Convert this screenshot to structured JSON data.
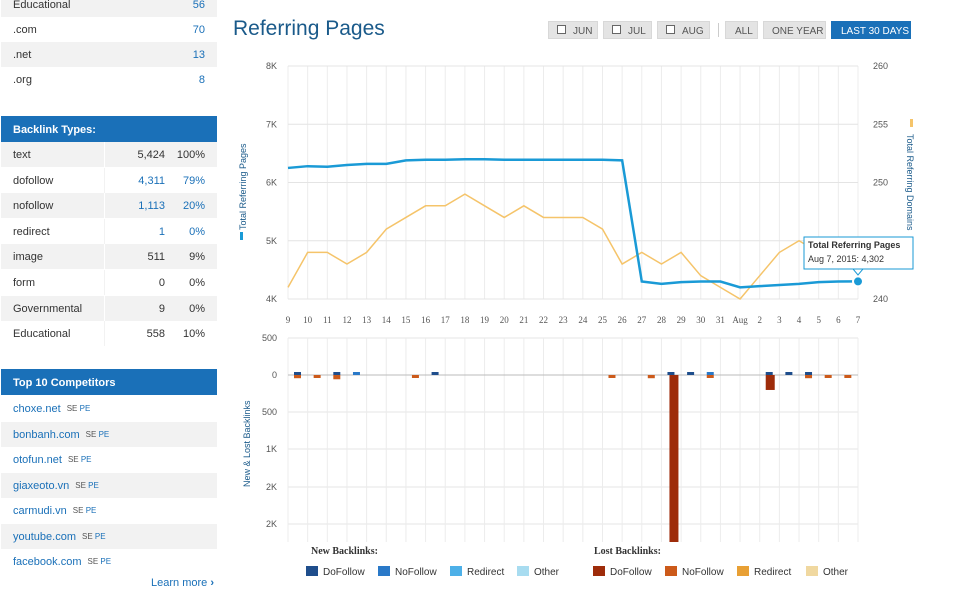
{
  "top_rows": [
    {
      "label": "Educational",
      "value": "56"
    },
    {
      "label": ".com",
      "value": "70"
    },
    {
      "label": ".net",
      "value": "13"
    },
    {
      "label": ".org",
      "value": "8"
    }
  ],
  "backlink_types": {
    "title": "Backlink Types:",
    "rows": [
      {
        "label": "text",
        "count": "5,424",
        "pct": "100%",
        "link": false
      },
      {
        "label": "dofollow",
        "count": "4,311",
        "pct": "79%",
        "link": true
      },
      {
        "label": "nofollow",
        "count": "1,113",
        "pct": "20%",
        "link": true
      },
      {
        "label": "redirect",
        "count": "1",
        "pct": "0%",
        "link": true
      },
      {
        "label": "image",
        "count": "511",
        "pct": "9%",
        "link": false
      },
      {
        "label": "form",
        "count": "0",
        "pct": "0%",
        "link": false
      },
      {
        "label": "Governmental",
        "count": "9",
        "pct": "0%",
        "link": false
      },
      {
        "label": "Educational",
        "count": "558",
        "pct": "10%",
        "link": false
      }
    ]
  },
  "competitors": {
    "title": "Top 10 Competitors",
    "items": [
      {
        "name": "choxe.net"
      },
      {
        "name": "bonbanh.com"
      },
      {
        "name": "otofun.net"
      },
      {
        "name": "giaxeoto.vn"
      },
      {
        "name": "carmudi.vn"
      },
      {
        "name": "youtube.com"
      },
      {
        "name": "facebook.com"
      }
    ],
    "se_label": "SE",
    "pe_label": "PE",
    "learn_more": "Learn more"
  },
  "header": {
    "title": "Referring Pages",
    "buttons": {
      "jun": "JUN",
      "jul": "JUL",
      "aug": "AUG",
      "all": "ALL",
      "one_year": "ONE YEAR",
      "last_30": "LAST 30 DAYS"
    }
  },
  "colors": {
    "accent": "#1a70b8",
    "line_pages": "#1a9ad6",
    "line_domains": "#f5c46a"
  },
  "chart_data": [
    {
      "type": "line",
      "x": [
        "9",
        "10",
        "11",
        "12",
        "13",
        "14",
        "15",
        "16",
        "17",
        "18",
        "19",
        "20",
        "21",
        "22",
        "23",
        "24",
        "25",
        "26",
        "27",
        "28",
        "29",
        "30",
        "31",
        "Aug",
        "2",
        "3",
        "4",
        "5",
        "6",
        "7"
      ],
      "ylabel": "Total Referring Pages",
      "y2label": "Total Referring Domains",
      "ylim": [
        4000,
        8000
      ],
      "y_ticks": [
        "4K",
        "5K",
        "6K",
        "7K",
        "8K"
      ],
      "y2lim": [
        240,
        260
      ],
      "y2_ticks": [
        "240",
        "245",
        "250",
        "255",
        "260"
      ],
      "series": [
        {
          "name": "Total Referring Pages",
          "axis": "left",
          "values": [
            6250,
            6280,
            6270,
            6300,
            6320,
            6320,
            6380,
            6390,
            6390,
            6400,
            6400,
            6390,
            6390,
            6390,
            6390,
            6390,
            6390,
            6380,
            4300,
            4260,
            4290,
            4300,
            4300,
            4200,
            4220,
            4240,
            4260,
            4290,
            4300,
            4302
          ]
        },
        {
          "axis": "right",
          "values": [
            241,
            244,
            244,
            243,
            244,
            246,
            247,
            248,
            248,
            249,
            248,
            247,
            248,
            247,
            247,
            247,
            246,
            243,
            244,
            243,
            244,
            242,
            241,
            240,
            242,
            244,
            245,
            244,
            244,
            244
          ]
        }
      ],
      "tooltip": {
        "title": "Total Referring Pages",
        "text": "Aug 7, 2015: 4,302"
      }
    },
    {
      "type": "bar",
      "ylabel": "New & Lost Backlinks",
      "y_ticks": [
        "500",
        "0",
        "500",
        "1K",
        "2K",
        "2K"
      ],
      "ylim": [
        -2500,
        500
      ],
      "legend_new_title": "New Backlinks:",
      "legend_lost_title": "Lost Backlinks:",
      "new_series": [
        {
          "name": "DoFollow",
          "color": "#1f4e8c",
          "values": [
            40,
            0,
            30,
            0,
            0,
            0,
            0,
            50,
            0,
            0,
            0,
            0,
            0,
            0,
            0,
            0,
            0,
            0,
            0,
            40,
            40,
            0,
            0,
            0,
            40,
            40,
            40,
            0,
            0,
            0
          ]
        },
        {
          "name": "NoFollow",
          "color": "#2a79c8",
          "values": [
            0,
            0,
            0,
            20,
            0,
            0,
            0,
            0,
            0,
            0,
            0,
            0,
            0,
            0,
            0,
            0,
            0,
            0,
            0,
            0,
            0,
            10,
            0,
            0,
            0,
            0,
            0,
            0,
            0,
            0
          ]
        },
        {
          "name": "Redirect",
          "color": "#4db0e8",
          "values": [
            0,
            0,
            0,
            0,
            0,
            0,
            0,
            0,
            0,
            0,
            0,
            0,
            0,
            0,
            0,
            0,
            0,
            0,
            0,
            0,
            0,
            0,
            0,
            0,
            0,
            0,
            0,
            0,
            0,
            0
          ]
        },
        {
          "name": "Other",
          "color": "#a8dcf0",
          "values": [
            0,
            0,
            0,
            0,
            0,
            0,
            0,
            0,
            0,
            0,
            0,
            0,
            0,
            0,
            0,
            0,
            0,
            0,
            0,
            0,
            0,
            0,
            0,
            0,
            0,
            0,
            0,
            0,
            0,
            0
          ]
        }
      ],
      "lost_series": [
        {
          "name": "DoFollow",
          "color": "#9e2c0a",
          "values": [
            0,
            0,
            0,
            0,
            0,
            0,
            0,
            0,
            0,
            0,
            0,
            0,
            0,
            0,
            0,
            0,
            0,
            0,
            0,
            2500,
            0,
            0,
            0,
            0,
            140,
            0,
            0,
            0,
            0,
            0
          ]
        },
        {
          "name": "NoFollow",
          "color": "#cc5a1a",
          "values": [
            30,
            20,
            40,
            0,
            0,
            0,
            20,
            0,
            0,
            0,
            0,
            0,
            0,
            0,
            0,
            0,
            15,
            0,
            30,
            0,
            0,
            10,
            0,
            0,
            0,
            0,
            30,
            20,
            20,
            0
          ]
        },
        {
          "name": "Redirect",
          "color": "#e8a035",
          "values": [
            0,
            0,
            0,
            0,
            0,
            0,
            0,
            0,
            0,
            0,
            0,
            0,
            0,
            0,
            0,
            0,
            0,
            0,
            0,
            0,
            0,
            0,
            0,
            0,
            0,
            0,
            0,
            0,
            0,
            0
          ]
        },
        {
          "name": "Other",
          "color": "#f0d8a0",
          "values": [
            0,
            0,
            0,
            0,
            0,
            0,
            0,
            0,
            0,
            0,
            0,
            0,
            0,
            0,
            0,
            0,
            0,
            0,
            0,
            0,
            0,
            0,
            0,
            0,
            0,
            0,
            0,
            0,
            0,
            0
          ]
        }
      ]
    }
  ]
}
